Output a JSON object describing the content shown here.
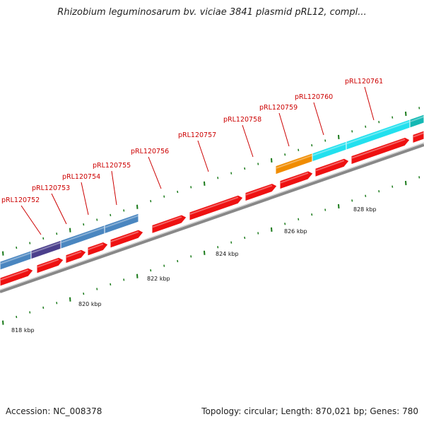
{
  "title": "Rhizobium leguminosarum bv. viciae 3841 plasmid pRL12, compl...",
  "footer": {
    "accession": "Accession: NC_008378",
    "summary": "Topology: circular; Length: 870,021 bp; Genes: 780"
  },
  "colors": {
    "cds": "#ee1111",
    "steelblue": "#4a86c0",
    "purple": "#4b3f8c",
    "orange": "#f08c00",
    "cyan": "#22e0ee",
    "teal": "#14b8b4",
    "backbone": "#888888",
    "ticks": "#1a7a1a",
    "label": "#cc0000"
  },
  "loci": [
    "pRL120752",
    "pRL120753",
    "pRL120754",
    "pRL120755",
    "pRL120756",
    "pRL120757",
    "pRL120758",
    "pRL120759",
    "pRL120760",
    "pRL120761"
  ],
  "kbp_labels": [
    "818 kbp",
    "820 kbp",
    "822 kbp",
    "824 kbp",
    "826 kbp",
    "828 kbp"
  ]
}
